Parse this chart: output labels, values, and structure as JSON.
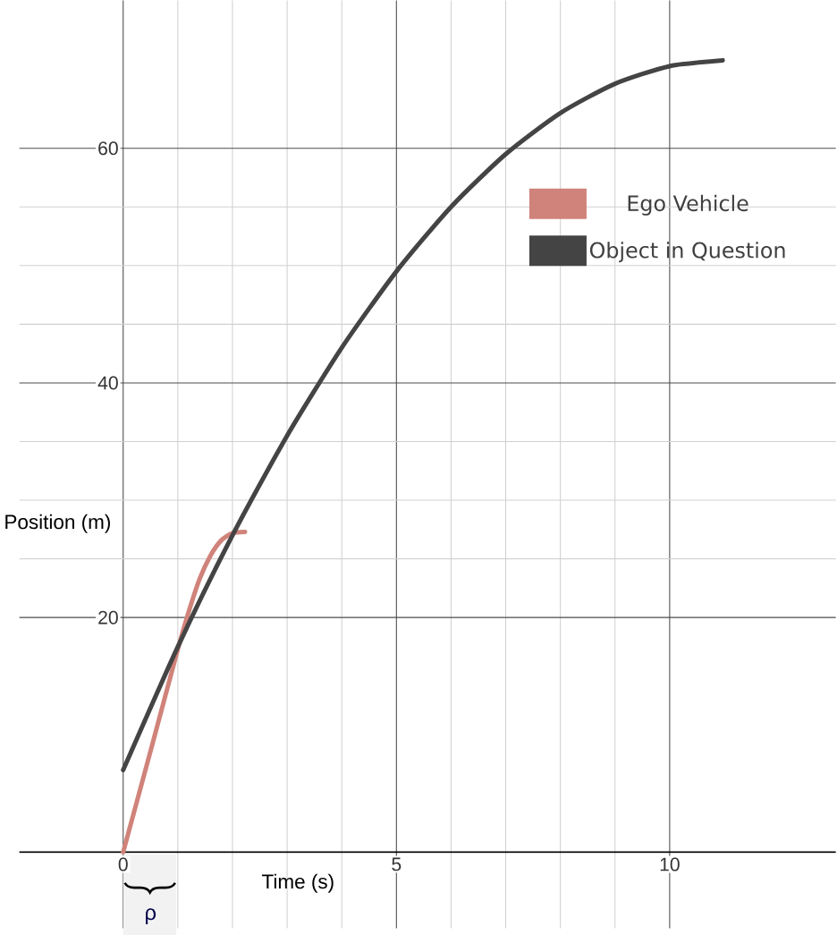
{
  "chart_data": {
    "type": "line",
    "xlabel": "Time (s)",
    "ylabel": "Position (m)",
    "xlim": [
      -1.9,
      13.04
    ],
    "ylim": [
      -6.5,
      72.6
    ],
    "xticks": [
      0,
      5,
      10
    ],
    "yticks": [
      20,
      40,
      60
    ],
    "grid": true,
    "legend": "right",
    "marker": "none",
    "line_style": "solid",
    "series": [
      {
        "name": "Ego Vehicle",
        "color": "#d0837a",
        "x": [
          0,
          0.5,
          1,
          1.2,
          1.4,
          1.6,
          1.8,
          2.0,
          2.23
        ],
        "values": [
          0,
          8.6,
          17.3,
          20.5,
          23.3,
          25.3,
          26.6,
          27.2,
          27.3
        ]
      },
      {
        "name": "Object in Question",
        "color": "#444444",
        "x": [
          0,
          1,
          2,
          3,
          4,
          5,
          6,
          7,
          8,
          9,
          10,
          10.97
        ],
        "values": [
          7,
          17.5,
          27,
          35.5,
          43,
          49.5,
          55,
          59.5,
          63,
          65.5,
          67,
          67.5
        ]
      }
    ],
    "annotations": [
      "ρ"
    ]
  }
}
